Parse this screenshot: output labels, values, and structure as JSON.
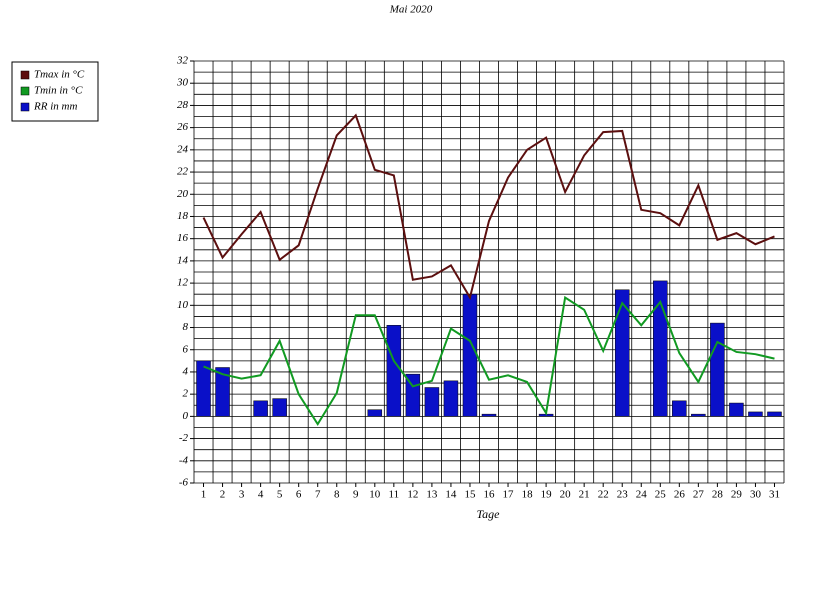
{
  "chart_data": {
    "type": "bar_line",
    "title": "Mai 2020",
    "x_label": "Tage",
    "categories": [
      "1",
      "2",
      "3",
      "4",
      "5",
      "6",
      "7",
      "8",
      "9",
      "10",
      "11",
      "12",
      "13",
      "14",
      "15",
      "16",
      "17",
      "18",
      "19",
      "20",
      "21",
      "22",
      "23",
      "24",
      "25",
      "26",
      "27",
      "28",
      "29",
      "30",
      "31"
    ],
    "series": [
      {
        "name": "Tmax in °C",
        "type": "line",
        "color": "#5c0f0f",
        "values": [
          17.9,
          14.3,
          16.4,
          18.4,
          14.1,
          15.4,
          20.5,
          25.3,
          27.1,
          22.2,
          21.7,
          12.3,
          12.6,
          13.6,
          10.7,
          17.6,
          21.5,
          24.0,
          25.1,
          20.2,
          23.5,
          25.6,
          25.7,
          18.6,
          18.3,
          17.2,
          20.8,
          15.9,
          16.5,
          15.5,
          16.2
        ]
      },
      {
        "name": "Tmin in °C",
        "type": "line",
        "color": "#119a22",
        "values": [
          4.5,
          3.8,
          3.4,
          3.7,
          6.8,
          2.0,
          -0.7,
          2.1,
          9.1,
          9.1,
          5.0,
          2.7,
          3.2,
          7.9,
          6.8,
          3.3,
          3.7,
          3.1,
          0.3,
          10.7,
          9.6,
          5.9,
          10.2,
          8.2,
          10.3,
          5.7,
          3.1,
          6.7,
          5.8,
          5.6,
          5.2
        ]
      },
      {
        "name": "RR in mm",
        "type": "bar",
        "color": "#0a10c8",
        "values": [
          5.0,
          4.4,
          0,
          1.4,
          1.6,
          0,
          0,
          0,
          0,
          0.6,
          8.2,
          3.8,
          2.6,
          3.2,
          11.0,
          0.2,
          0,
          0,
          0.2,
          0,
          0,
          0,
          11.4,
          0,
          12.2,
          1.4,
          0.2,
          8.4,
          1.2,
          0.4,
          0.4
        ]
      }
    ],
    "ylim": [
      -6,
      32
    ],
    "yticks": [
      -6,
      -4,
      -2,
      0,
      2,
      4,
      6,
      8,
      10,
      12,
      14,
      16,
      18,
      20,
      22,
      24,
      26,
      28,
      30,
      32
    ],
    "grid": true,
    "legend": "left"
  }
}
